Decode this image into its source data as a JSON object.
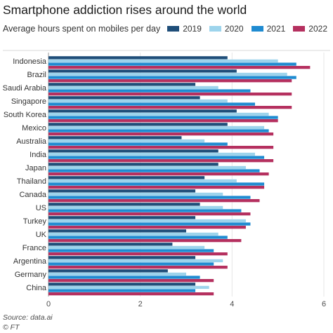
{
  "title": "Smartphone addiction rises around the world",
  "subtitle": "Average hours spent on mobiles per day",
  "source": "Source: data.ai",
  "credit": "© FT",
  "chart_data": {
    "type": "bar",
    "orientation": "horizontal",
    "categories": [
      "Indonesia",
      "Brazil",
      "Saudi Arabia",
      "Singapore",
      "South Korea",
      "Mexico",
      "Australia",
      "India",
      "Japan",
      "Thailand",
      "Canada",
      "US",
      "Turkey",
      "UK",
      "France",
      "Argentina",
      "Germany",
      "China"
    ],
    "series": [
      {
        "name": "2019",
        "color": "#1f4e79",
        "values": [
          3.9,
          4.1,
          3.2,
          3.3,
          4.1,
          3.9,
          2.9,
          3.7,
          3.7,
          3.4,
          3.2,
          3.3,
          3.2,
          3.0,
          2.7,
          3.2,
          2.6,
          3.2
        ]
      },
      {
        "name": "2020",
        "color": "#9dd4ec",
        "values": [
          5.0,
          5.2,
          3.7,
          3.9,
          4.8,
          4.7,
          3.4,
          4.5,
          4.3,
          4.1,
          3.8,
          3.8,
          4.3,
          3.7,
          3.4,
          3.8,
          3.0,
          3.5
        ]
      },
      {
        "name": "2021",
        "color": "#1f8bd1",
        "values": [
          5.4,
          5.4,
          4.4,
          4.5,
          5.0,
          4.8,
          3.9,
          4.7,
          4.6,
          4.7,
          4.4,
          4.2,
          4.4,
          3.9,
          3.6,
          3.6,
          3.3,
          3.2
        ]
      },
      {
        "name": "2022",
        "color": "#b5305f",
        "values": [
          5.7,
          5.3,
          5.3,
          5.3,
          5.0,
          4.9,
          4.9,
          4.9,
          4.8,
          4.7,
          4.6,
          4.4,
          4.3,
          4.2,
          3.9,
          3.9,
          3.6,
          3.6
        ]
      }
    ],
    "xlim": [
      0,
      6
    ],
    "xticks": [
      0,
      2,
      4,
      6
    ],
    "grid": true,
    "legend_position": "top-right"
  }
}
